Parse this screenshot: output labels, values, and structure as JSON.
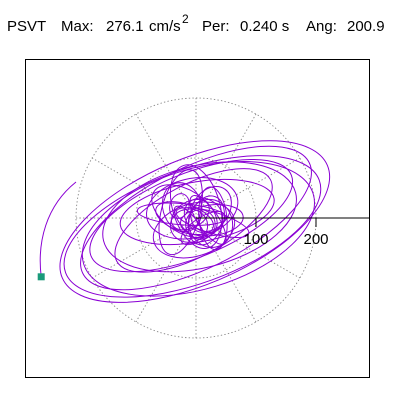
{
  "header": {
    "psvt": "PSVT",
    "max_label": "Max:",
    "max_value": "276.1",
    "max_unit": "cm/s",
    "max_exp": "2",
    "per_label": "Per:",
    "per_value": "0.240 s",
    "ang_label": "Ang:",
    "ang_value": "200.9"
  },
  "chart_data": {
    "type": "scatter",
    "title": "PSVT Max: 276.1 cm/s2 Per: 0.240 s Ang: 200.9",
    "xlabel": "",
    "ylabel": "",
    "xlim": [
      -290,
      290
    ],
    "ylim": [
      -260,
      260
    ],
    "grid": true,
    "grid_radii": [
      100,
      200
    ],
    "grid_spokes_deg": [
      0,
      30,
      60,
      90,
      120,
      150,
      180,
      210,
      240,
      270,
      300,
      330
    ],
    "x_ticks": [
      100,
      200
    ],
    "tick_labels": [
      "100",
      "200"
    ],
    "max_value": 276.1,
    "angle_deg": 200.9,
    "marker_color": "#1a9a7a",
    "trace_color": "#8a00d4",
    "peak_marker": {
      "x": -258,
      "y": -98
    },
    "series": [
      {
        "values": []
      }
    ]
  }
}
